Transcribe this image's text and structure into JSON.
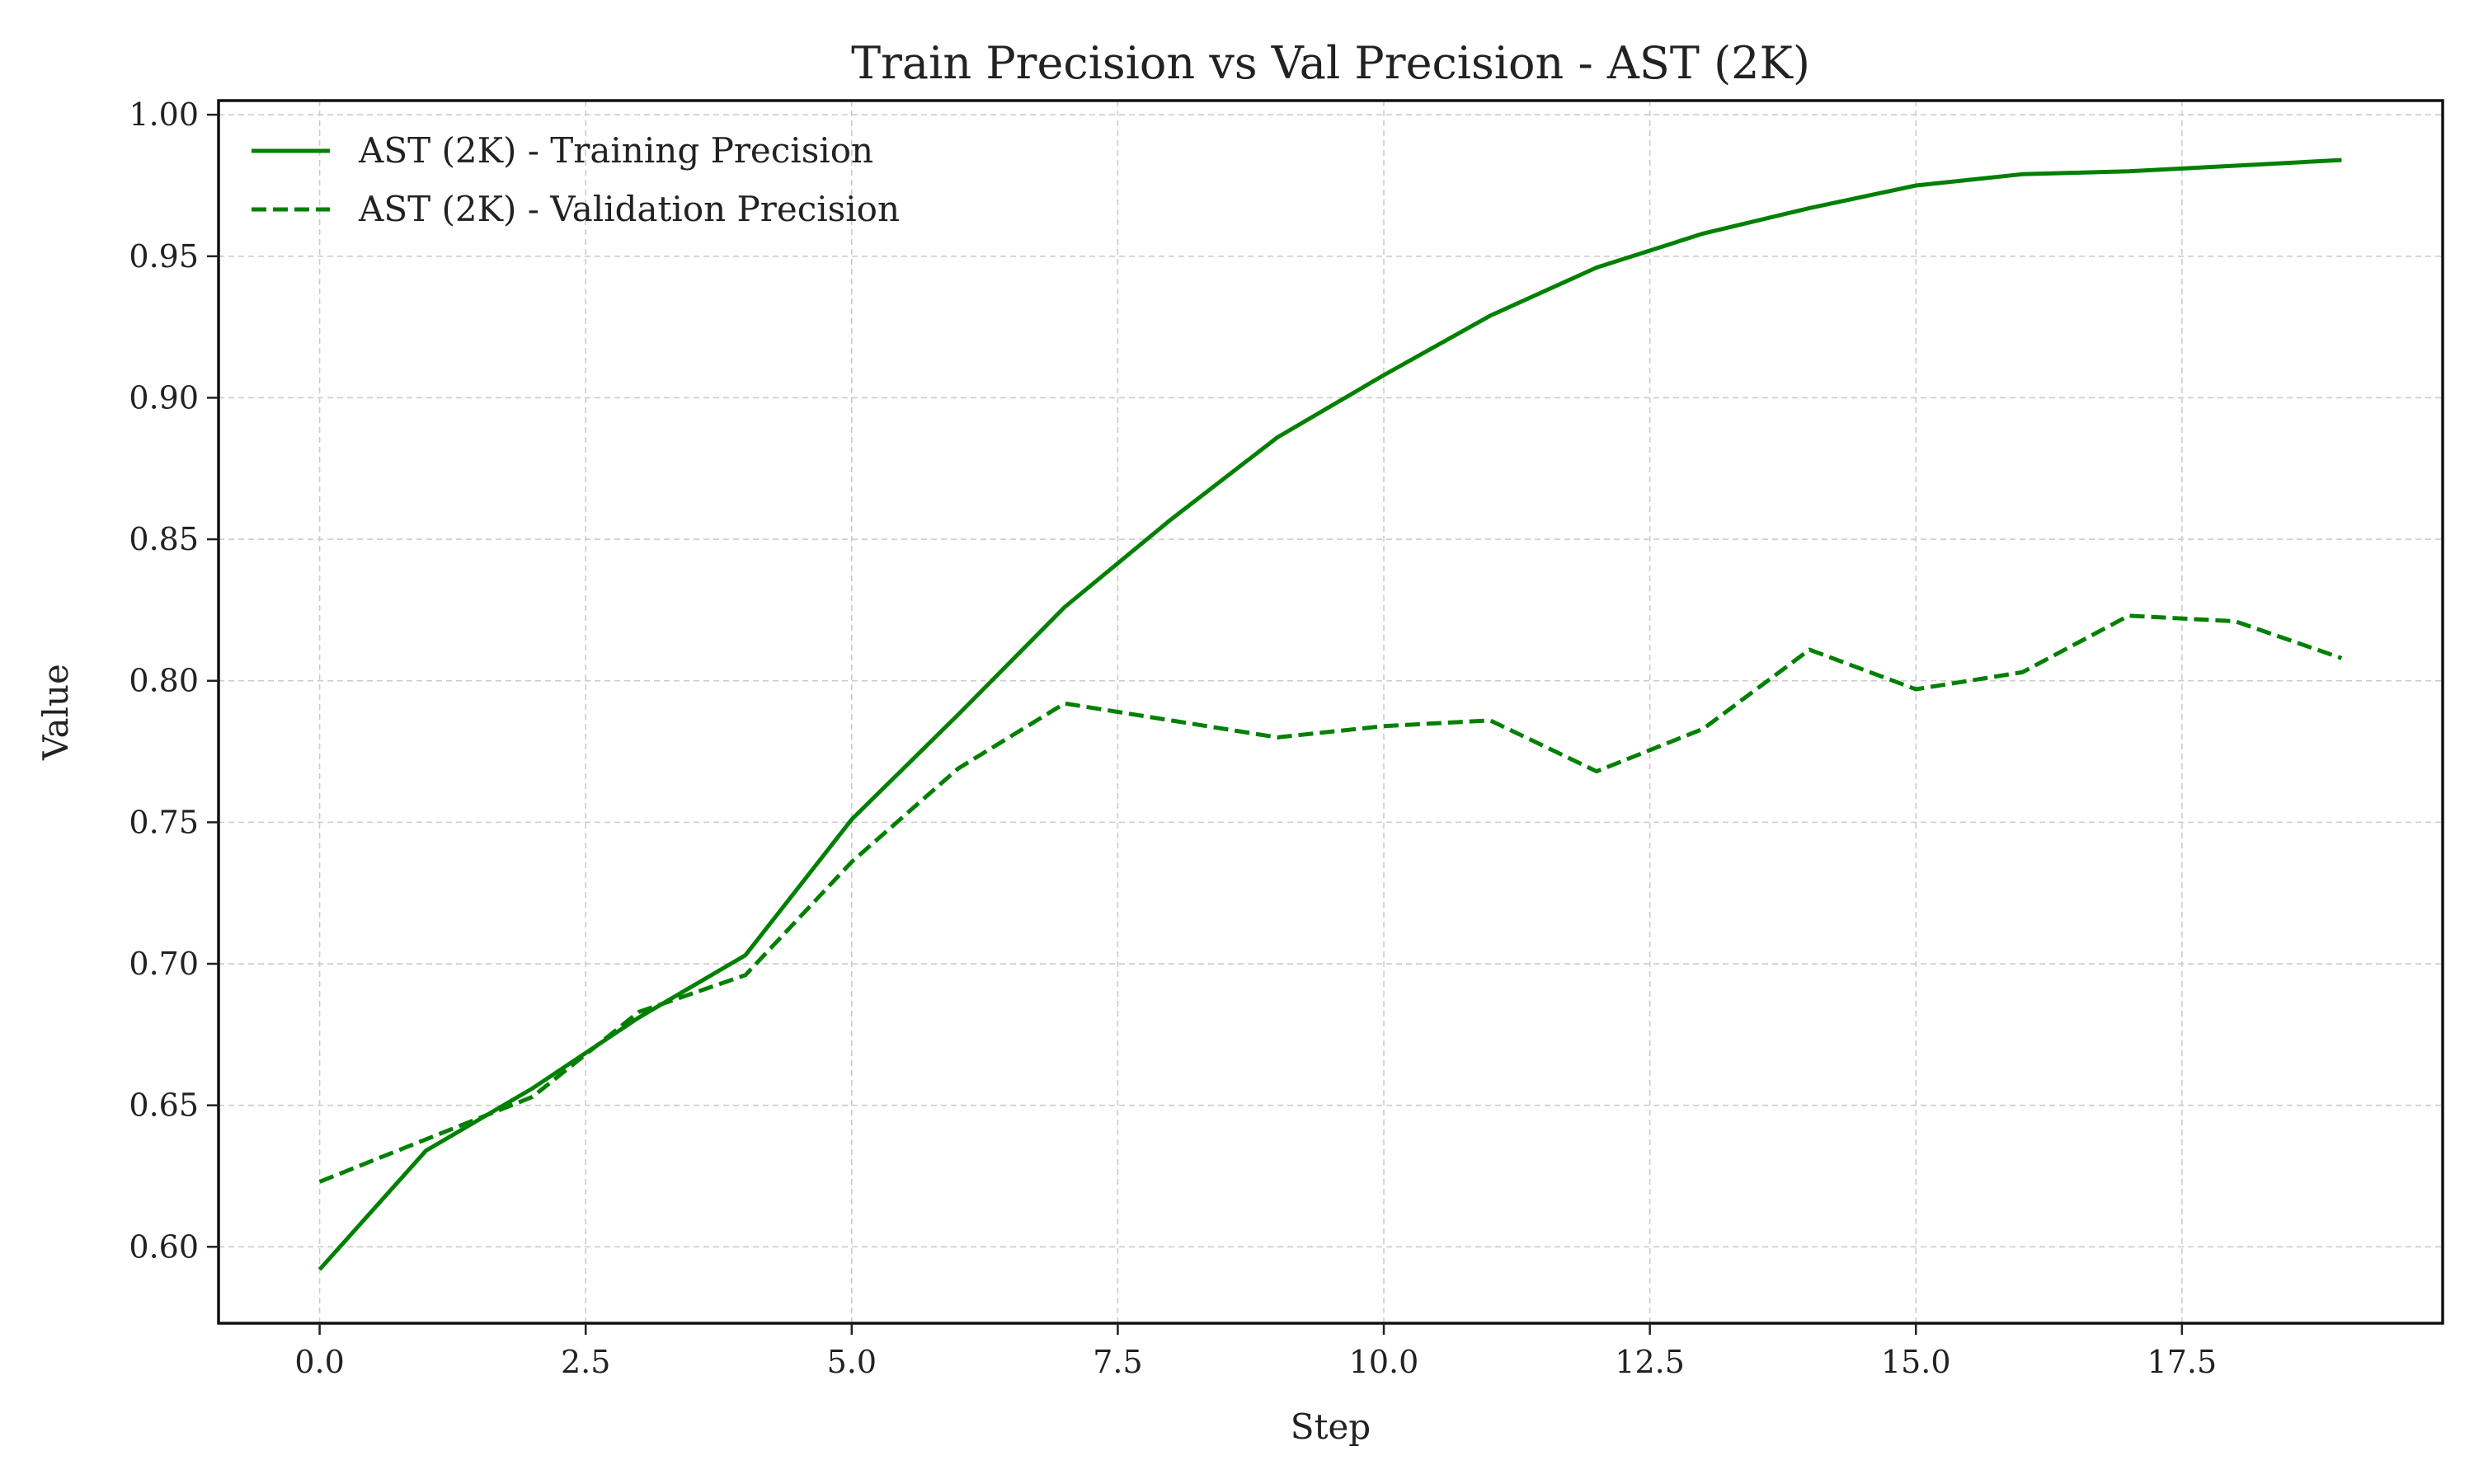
{
  "chart_data": {
    "type": "line",
    "title": "Train Precision vs Val Precision - AST (2K)",
    "xlabel": "Step",
    "ylabel": "Value",
    "xlim": [
      -0.95,
      19.95
    ],
    "ylim": [
      0.573,
      1.005
    ],
    "xticks": [
      0.0,
      2.5,
      5.0,
      7.5,
      10.0,
      12.5,
      15.0,
      17.5
    ],
    "xtick_labels": [
      "0.0",
      "2.5",
      "5.0",
      "7.5",
      "10.0",
      "12.5",
      "15.0",
      "17.5"
    ],
    "yticks": [
      0.6,
      0.65,
      0.7,
      0.75,
      0.8,
      0.85,
      0.9,
      0.95,
      1.0
    ],
    "ytick_labels": [
      "0.60",
      "0.65",
      "0.70",
      "0.75",
      "0.80",
      "0.85",
      "0.90",
      "0.95",
      "1.00"
    ],
    "grid": true,
    "legend_position": "top-left",
    "x": [
      0,
      1,
      2,
      3,
      4,
      5,
      6,
      7,
      8,
      9,
      10,
      11,
      12,
      13,
      14,
      15,
      16,
      17,
      18,
      19
    ],
    "series": [
      {
        "name": "AST (2K) - Training Precision",
        "style": "solid",
        "color": "#008000",
        "values": [
          0.592,
          0.634,
          0.656,
          0.681,
          0.703,
          0.751,
          0.788,
          0.826,
          0.857,
          0.886,
          0.908,
          0.929,
          0.946,
          0.958,
          0.967,
          0.975,
          0.979,
          0.98,
          0.982,
          0.984
        ]
      },
      {
        "name": "AST (2K) - Validation Precision",
        "style": "dashed",
        "color": "#008000",
        "values": [
          0.623,
          0.638,
          0.653,
          0.683,
          0.696,
          0.736,
          0.769,
          0.792,
          0.786,
          0.78,
          0.784,
          0.786,
          0.768,
          0.783,
          0.811,
          0.797,
          0.803,
          0.823,
          0.821,
          0.808
        ]
      }
    ]
  }
}
